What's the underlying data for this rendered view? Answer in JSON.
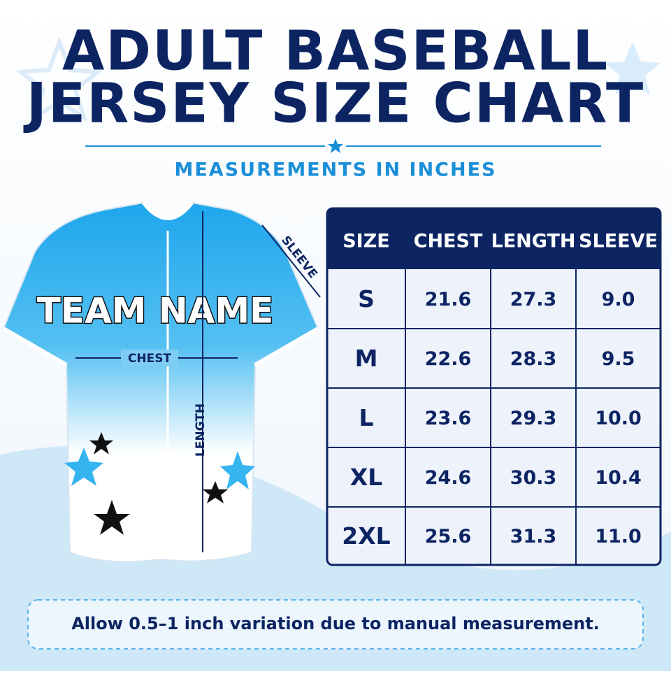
{
  "header": {
    "title_lines": [
      "ADULT BASEBALL",
      "JERSEY SIZE CHART"
    ],
    "subtitle": "MEASUREMENTS IN INCHES"
  },
  "jersey": {
    "team_name": "TEAM NAME",
    "chest_label": "CHEST",
    "length_label": "LENGTH",
    "sleeve_label": "SLEEVE"
  },
  "table": {
    "columns": [
      "SIZE",
      "CHEST",
      "LENGTH",
      "SLEEVE"
    ],
    "rows": [
      [
        "S",
        "21.6",
        "27.3",
        "9.0"
      ],
      [
        "M",
        "22.6",
        "28.3",
        "9.5"
      ],
      [
        "L",
        "23.6",
        "29.3",
        "10.0"
      ],
      [
        "XL",
        "24.6",
        "30.3",
        "10.4"
      ],
      [
        "2XL",
        "25.6",
        "31.3",
        "11.0"
      ]
    ]
  },
  "footer": {
    "note": "Allow 0.5–1 inch variation due to manual measurement."
  }
}
